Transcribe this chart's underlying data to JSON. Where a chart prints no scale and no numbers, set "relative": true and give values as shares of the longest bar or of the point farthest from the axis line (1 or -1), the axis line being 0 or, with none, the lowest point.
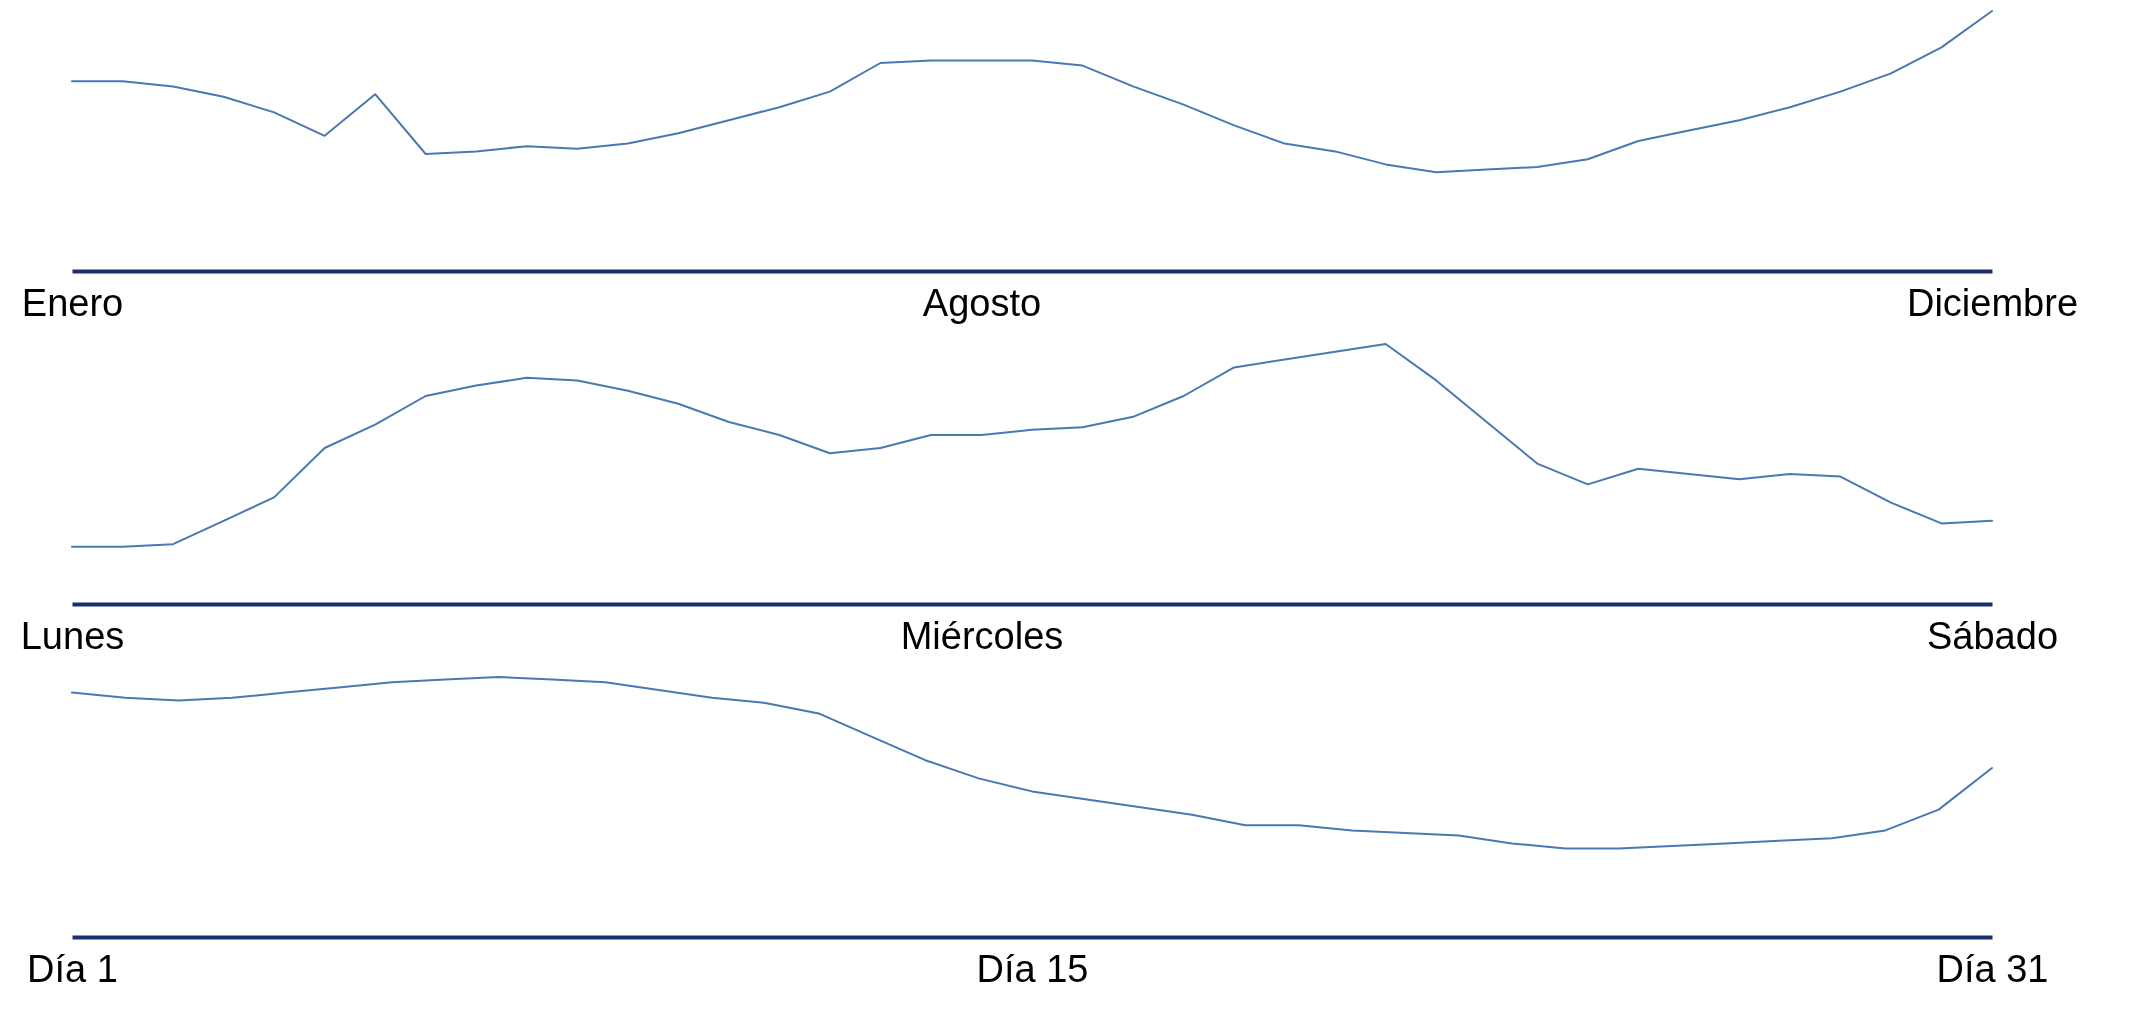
{
  "chart_data": [
    {
      "type": "line",
      "relative": true,
      "color": "#4a78b0",
      "categories": [
        "Enero",
        null,
        null,
        null,
        null,
        null,
        null,
        null,
        null,
        null,
        null,
        null,
        null,
        null,
        null,
        null,
        null,
        null,
        "Agosto",
        null,
        null,
        null,
        null,
        null,
        null,
        null,
        null,
        null,
        null,
        null,
        null,
        null,
        null,
        null,
        null,
        null,
        null,
        null,
        "Diciembre"
      ],
      "values": [
        0.73,
        0.73,
        0.71,
        0.67,
        0.61,
        0.52,
        0.68,
        0.45,
        0.46,
        0.48,
        0.47,
        0.49,
        0.53,
        0.58,
        0.63,
        0.69,
        0.8,
        0.81,
        0.81,
        0.81,
        0.79,
        0.71,
        0.64,
        0.56,
        0.49,
        0.46,
        0.41,
        0.38,
        0.39,
        0.4,
        0.43,
        0.5,
        0.54,
        0.58,
        0.63,
        0.69,
        0.76,
        0.86,
        1
      ]
    },
    {
      "type": "line",
      "relative": true,
      "color": "#4a78b0",
      "categories": [
        "Lunes",
        null,
        null,
        null,
        null,
        null,
        null,
        null,
        null,
        null,
        null,
        null,
        null,
        null,
        null,
        null,
        null,
        null,
        "Miércoles",
        null,
        null,
        null,
        null,
        null,
        null,
        null,
        null,
        null,
        null,
        null,
        null,
        null,
        null,
        null,
        null,
        null,
        null,
        null,
        "Sábado"
      ],
      "values": [
        0.22,
        0.22,
        0.23,
        0.32,
        0.41,
        0.6,
        0.69,
        0.8,
        0.84,
        0.87,
        0.86,
        0.82,
        0.77,
        0.7,
        0.65,
        0.58,
        0.6,
        0.65,
        0.65,
        0.67,
        0.68,
        0.72,
        0.8,
        0.91,
        0.94,
        0.97,
        1,
        0.86,
        0.7,
        0.54,
        0.46,
        0.52,
        0.5,
        0.48,
        0.5,
        0.49,
        0.39,
        0.31,
        0.32
      ]
    },
    {
      "type": "line",
      "relative": true,
      "color": "#4a78b0",
      "categories": [
        "Día 1",
        null,
        null,
        null,
        null,
        null,
        null,
        null,
        null,
        null,
        null,
        null,
        null,
        null,
        null,
        null,
        null,
        null,
        "Día 15",
        null,
        null,
        null,
        null,
        null,
        null,
        null,
        null,
        null,
        null,
        null,
        null,
        null,
        null,
        null,
        null,
        null,
        "Día 31"
      ],
      "values": [
        0.94,
        0.92,
        0.91,
        0.92,
        0.94,
        0.96,
        0.98,
        0.99,
        1,
        0.99,
        0.98,
        0.95,
        0.92,
        0.9,
        0.86,
        0.77,
        0.68,
        0.61,
        0.56,
        0.53,
        0.5,
        0.47,
        0.43,
        0.43,
        0.41,
        0.4,
        0.39,
        0.36,
        0.34,
        0.34,
        0.35,
        0.36,
        0.37,
        0.38,
        0.41,
        0.49,
        0.65
      ]
    }
  ]
}
